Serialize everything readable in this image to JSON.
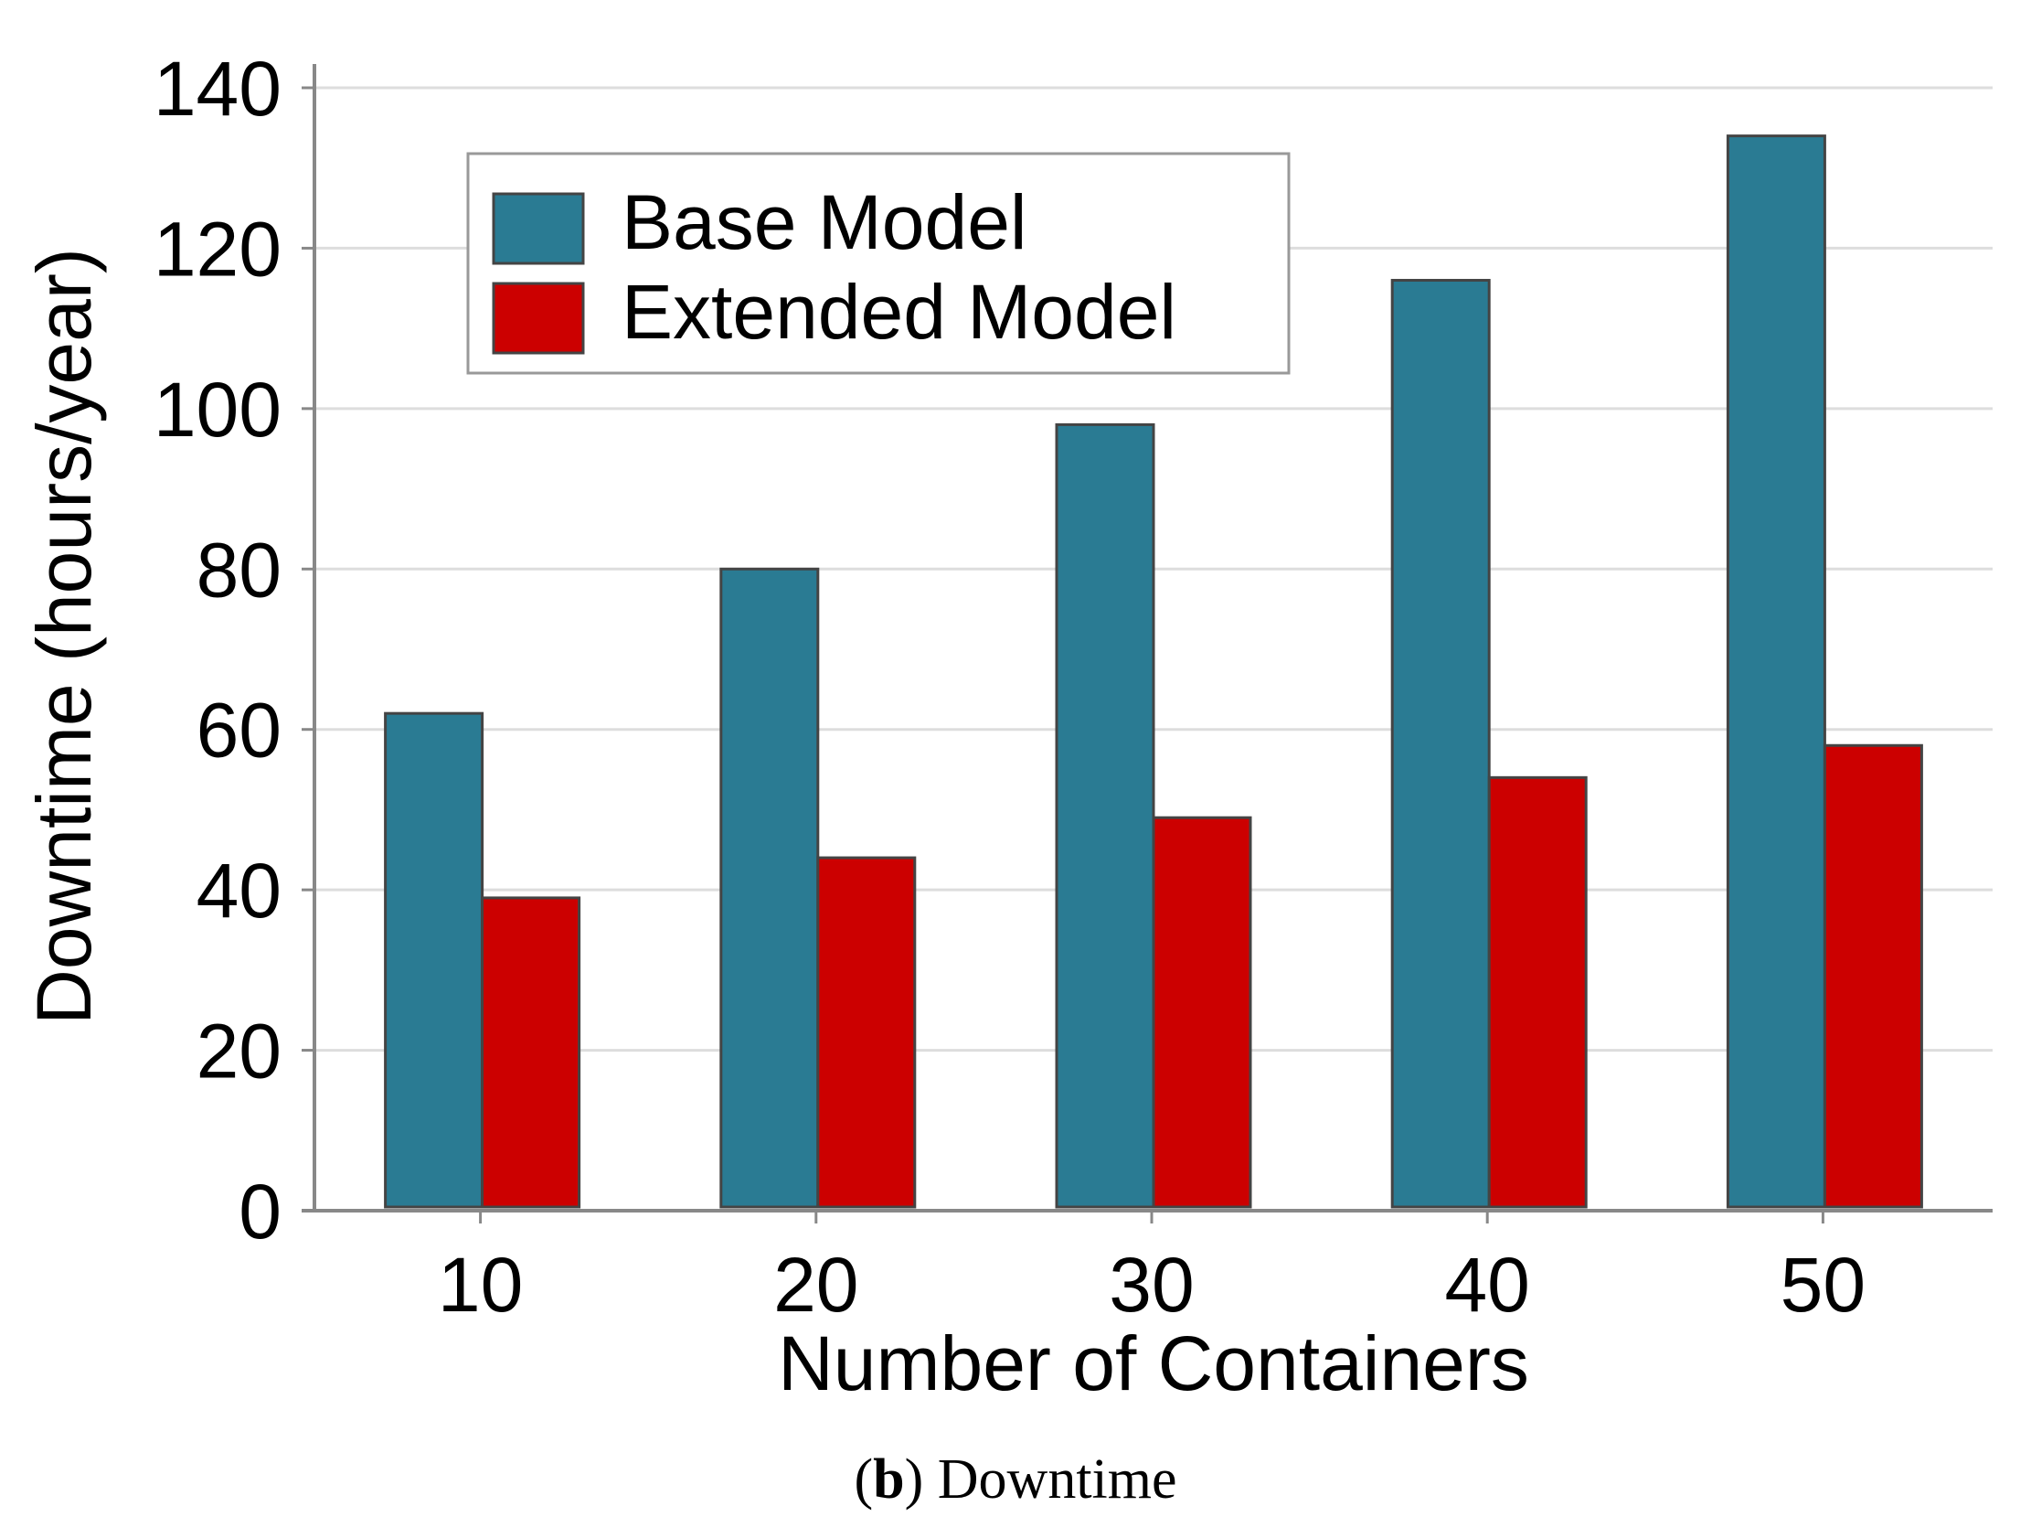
{
  "chart_data": {
    "type": "bar",
    "categories": [
      "10",
      "20",
      "30",
      "40",
      "50"
    ],
    "series": [
      {
        "name": "Base Model",
        "values": [
          62,
          80,
          98,
          116,
          134
        ],
        "color": "#2a7b93"
      },
      {
        "name": "Extended Model",
        "values": [
          39,
          44,
          49,
          54,
          58
        ],
        "color": "#cc0000"
      }
    ],
    "xlabel": "Number of Containers",
    "ylabel": "Downtime (hours/year)",
    "ylim": [
      0,
      140
    ],
    "yticks": [
      "0",
      "20",
      "40",
      "60",
      "80",
      "100",
      "120",
      "140"
    ],
    "grid": true,
    "legend_position": "top-left",
    "caption": {
      "letter": "b",
      "open": "(",
      "close": ")",
      "text": "Downtime"
    }
  }
}
